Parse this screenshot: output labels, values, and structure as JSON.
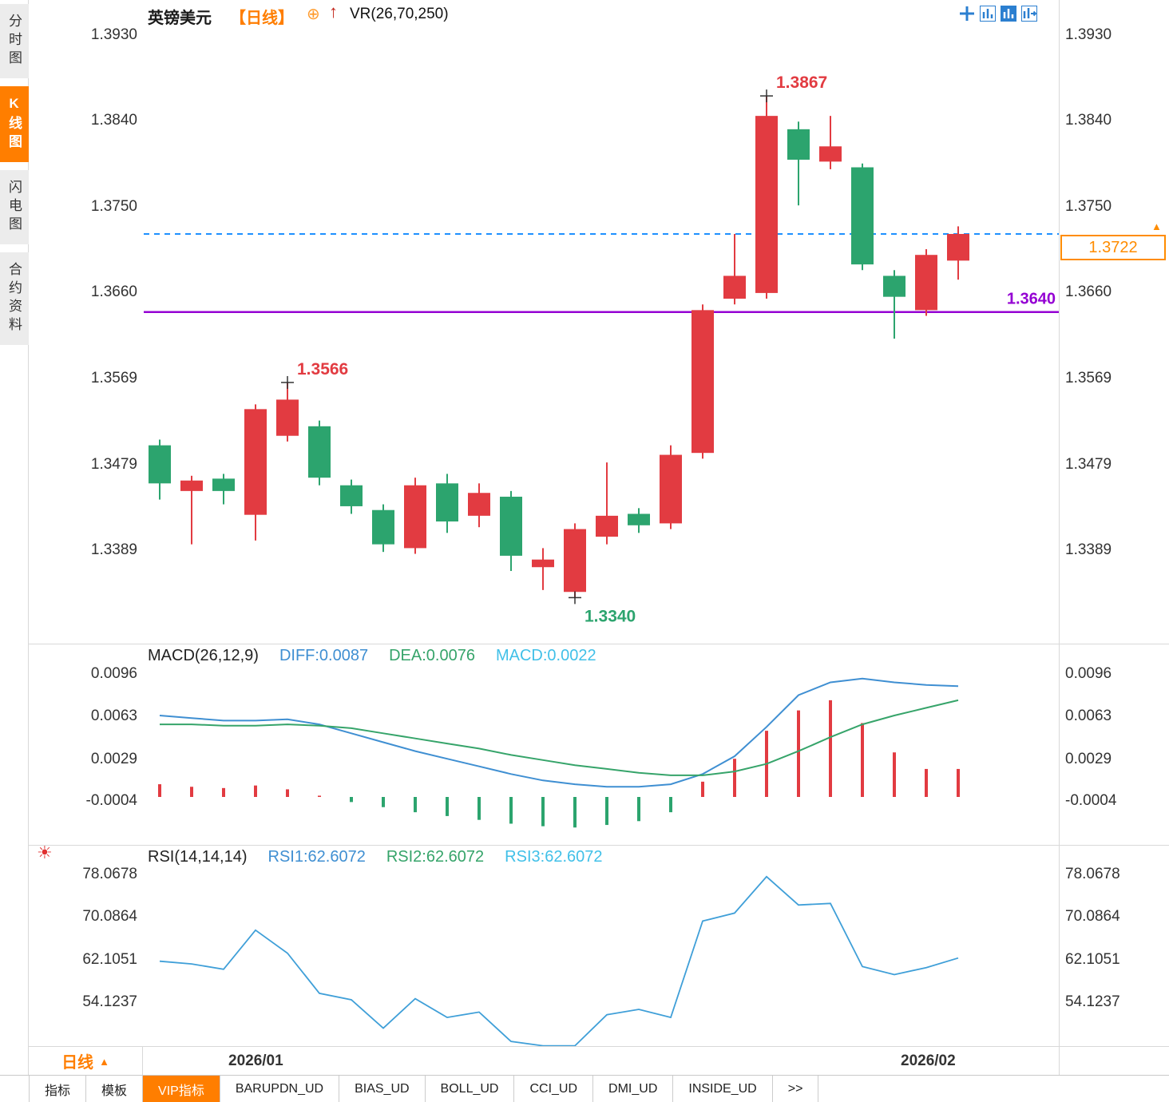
{
  "colors": {
    "up_red": "#e23b41",
    "down_green": "#2ca46e",
    "accent_orange": "#ff7e00",
    "price_box_orange": "#ff8c00",
    "support_purple": "#9400d3",
    "last_price_blue": "#1e90ff",
    "diff_blue": "#3f8fd2",
    "dea_green": "#36a46a",
    "macd_cyan": "#41c0e8",
    "rsi_blue": "#3f9fd8"
  },
  "sidebar": {
    "items": [
      {
        "label": "分时图",
        "active": false
      },
      {
        "label": "K线图",
        "active": true
      },
      {
        "label": "闪电图",
        "active": false
      },
      {
        "label": "合约资料",
        "active": false
      }
    ]
  },
  "header": {
    "symbol": "英镑美元",
    "period_tag": "【日线】",
    "overlay_indicator": "VR(26,70,250)",
    "toolbar_icons": [
      "crosshair-icon",
      "bar-chart-icon",
      "bar-chart-filled-icon",
      "bar-chart-next-icon"
    ]
  },
  "macd_panel": {
    "title": "MACD(26,12,9)",
    "diff": "DIFF:0.0087",
    "dea": "DEA:0.0076",
    "macd": "MACD:0.0022"
  },
  "rsi_panel": {
    "title": "RSI(14,14,14)",
    "rsi1": "RSI1:62.6072",
    "rsi2": "RSI2:62.6072",
    "rsi3": "RSI3:62.6072"
  },
  "bottom": {
    "period": "日线",
    "dates": [
      "2026/01",
      "2026/02"
    ]
  },
  "tabs": [
    {
      "label": "指标",
      "active": false
    },
    {
      "label": "模板",
      "active": false
    },
    {
      "label": "VIP指标",
      "active": true
    },
    {
      "label": "BARUPDN_UD",
      "active": false
    },
    {
      "label": "BIAS_UD",
      "active": false
    },
    {
      "label": "BOLL_UD",
      "active": false
    },
    {
      "label": "CCI_UD",
      "active": false
    },
    {
      "label": "DMI_UD",
      "active": false
    },
    {
      "label": "INSIDE_UD",
      "active": false
    },
    {
      "label": ">>",
      "active": false
    }
  ],
  "chart_data": {
    "type": "candlestick",
    "title": "英镑美元 日线",
    "price": {
      "yticks": [
        "1.3930",
        "1.3840",
        "1.3750",
        "1.3660",
        "1.3569",
        "1.3479",
        "1.3389"
      ],
      "ylim": [
        1.334,
        1.393
      ],
      "candles_ohlc": [
        [
          1.35,
          1.3506,
          1.3443,
          1.346
        ],
        [
          1.3452,
          1.3468,
          1.3396,
          1.3463
        ],
        [
          1.3465,
          1.347,
          1.3438,
          1.3452
        ],
        [
          1.3427,
          1.3543,
          1.34,
          1.3538
        ],
        [
          1.351,
          1.3566,
          1.3504,
          1.3548
        ],
        [
          1.352,
          1.3526,
          1.3458,
          1.3466
        ],
        [
          1.3458,
          1.3464,
          1.3428,
          1.3436
        ],
        [
          1.3432,
          1.3438,
          1.3388,
          1.3396
        ],
        [
          1.3392,
          1.3466,
          1.3386,
          1.3458
        ],
        [
          1.346,
          1.347,
          1.3408,
          1.342
        ],
        [
          1.3426,
          1.346,
          1.3414,
          1.345
        ],
        [
          1.3446,
          1.3452,
          1.3368,
          1.3384
        ],
        [
          1.3372,
          1.3392,
          1.3348,
          1.338
        ],
        [
          1.3346,
          1.3418,
          1.334,
          1.3412
        ],
        [
          1.3404,
          1.3482,
          1.3396,
          1.3426
        ],
        [
          1.3428,
          1.3434,
          1.3408,
          1.3416
        ],
        [
          1.3418,
          1.35,
          1.3412,
          1.349
        ],
        [
          1.3492,
          1.3648,
          1.3486,
          1.3642
        ],
        [
          1.3654,
          1.3722,
          1.3648,
          1.3678
        ],
        [
          1.366,
          1.3867,
          1.3654,
          1.3846
        ],
        [
          1.3832,
          1.384,
          1.3752,
          1.38
        ],
        [
          1.3798,
          1.3846,
          1.379,
          1.3814
        ],
        [
          1.3792,
          1.3796,
          1.3684,
          1.369
        ],
        [
          1.3678,
          1.3684,
          1.3612,
          1.3656
        ],
        [
          1.3642,
          1.3706,
          1.3636,
          1.37
        ],
        [
          1.3694,
          1.373,
          1.3674,
          1.3722
        ]
      ],
      "annotations": [
        {
          "text": "1.3867",
          "value": 1.3867,
          "index": 19,
          "placement": "above",
          "color_key": "up_red"
        },
        {
          "text": "1.3566",
          "value": 1.3566,
          "index": 4,
          "placement": "above",
          "color_key": "up_red"
        },
        {
          "text": "1.3340",
          "value": 1.334,
          "index": 13,
          "placement": "below",
          "color_key": "down_green"
        }
      ],
      "support_line": {
        "value": 1.364,
        "label": "1.3640"
      },
      "last_price_line": {
        "value": 1.3722,
        "label": "1.3722"
      }
    },
    "macd": {
      "yticks": [
        "0.0096",
        "0.0063",
        "0.0029",
        "-0.0004"
      ],
      "histogram": [
        0.001,
        0.0008,
        0.0007,
        0.0009,
        0.0006,
        0.0001,
        -0.0004,
        -0.0008,
        -0.0012,
        -0.0015,
        -0.0018,
        -0.0021,
        -0.0023,
        -0.0024,
        -0.0022,
        -0.0019,
        -0.0012,
        0.0012,
        0.003,
        0.0052,
        0.0068,
        0.0076,
        0.0058,
        0.0035,
        0.0022,
        0.0022
      ],
      "diff": [
        0.0064,
        0.0062,
        0.006,
        0.006,
        0.0061,
        0.0057,
        0.005,
        0.0043,
        0.0036,
        0.003,
        0.0024,
        0.0018,
        0.0013,
        0.001,
        0.0008,
        0.0008,
        0.001,
        0.0018,
        0.0032,
        0.0055,
        0.008,
        0.009,
        0.0093,
        0.009,
        0.0088,
        0.0087
      ],
      "dea": [
        0.0057,
        0.0057,
        0.0056,
        0.0056,
        0.0057,
        0.0056,
        0.0054,
        0.005,
        0.0046,
        0.0042,
        0.0038,
        0.0033,
        0.0029,
        0.0025,
        0.0022,
        0.0019,
        0.0017,
        0.0017,
        0.002,
        0.0026,
        0.0036,
        0.0047,
        0.0057,
        0.0064,
        0.007,
        0.0076
      ]
    },
    "rsi": {
      "yticks": [
        "78.0678",
        "70.0864",
        "62.1051",
        "54.1237"
      ],
      "values": [
        62.0,
        61.5,
        60.5,
        67.8,
        63.5,
        56.0,
        54.8,
        49.5,
        55.0,
        51.5,
        52.5,
        47.0,
        46.2,
        46.2,
        52.0,
        53.0,
        51.5,
        69.5,
        71.0,
        77.8,
        72.5,
        72.8,
        61.0,
        59.5,
        60.8,
        62.6
      ]
    },
    "x_axis_dates": [
      "2026/01",
      "2026/02"
    ]
  }
}
